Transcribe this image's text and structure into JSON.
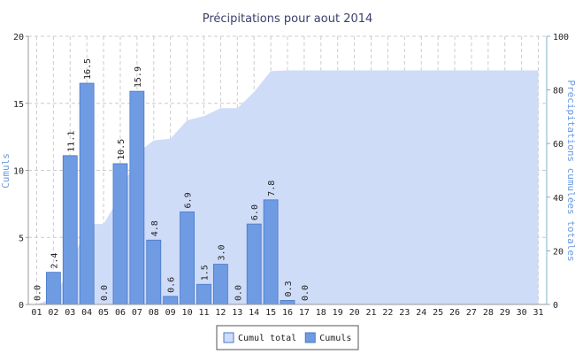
{
  "chart_data": {
    "type": "bar",
    "title": "Précipitations pour aout 2014",
    "categories": [
      "01",
      "02",
      "03",
      "04",
      "05",
      "06",
      "07",
      "08",
      "09",
      "10",
      "11",
      "12",
      "13",
      "14",
      "15",
      "16",
      "17",
      "18",
      "19",
      "20",
      "21",
      "22",
      "23",
      "24",
      "25",
      "26",
      "27",
      "28",
      "29",
      "30",
      "31"
    ],
    "y_label": "Cumuls",
    "y2_label": "Précipitations cumulées totales",
    "ylim": [
      0,
      20
    ],
    "yticks": [
      0,
      5,
      10,
      15,
      20
    ],
    "y2lim": [
      0,
      100
    ],
    "y2ticks": [
      0,
      20,
      40,
      60,
      80,
      100
    ],
    "grid": true,
    "legend": "bottom",
    "series": [
      {
        "name": "Cumul total",
        "type": "area",
        "axis": "y2",
        "color": "#cfdcf8",
        "values": [
          0,
          2.4,
          13.5,
          30,
          30,
          40.5,
          56.4,
          61.2,
          61.8,
          68.7,
          70.2,
          73.2,
          73.2,
          79.2,
          87,
          87.3,
          87.3,
          87.3,
          87.3,
          87.3,
          87.3,
          87.3,
          87.3,
          87.3,
          87.3,
          87.3,
          87.3,
          87.3,
          87.3,
          87.3,
          87.3
        ]
      },
      {
        "name": "Cumuls",
        "type": "bar",
        "color": "#6f9be3",
        "values": [
          0,
          2.4,
          11.1,
          16.5,
          0,
          10.5,
          15.9,
          4.8,
          0.6,
          6.9,
          1.5,
          3,
          0,
          6,
          7.8,
          0.3,
          0,
          null,
          null,
          null,
          null,
          null,
          null,
          null,
          null,
          null,
          null,
          null,
          null,
          null,
          null
        ],
        "value_labels": [
          "0.0",
          "2.4",
          "11.1",
          "16.5",
          "0.0",
          "10.5",
          "15.9",
          "4.8",
          "0.6",
          "6.9",
          "1.5",
          "3.0",
          "0.0",
          "6.0",
          "7.8",
          "0.3",
          "0.0",
          null,
          null,
          null,
          null,
          null,
          null,
          null,
          null,
          null,
          null,
          null,
          null,
          null,
          null
        ]
      }
    ]
  }
}
